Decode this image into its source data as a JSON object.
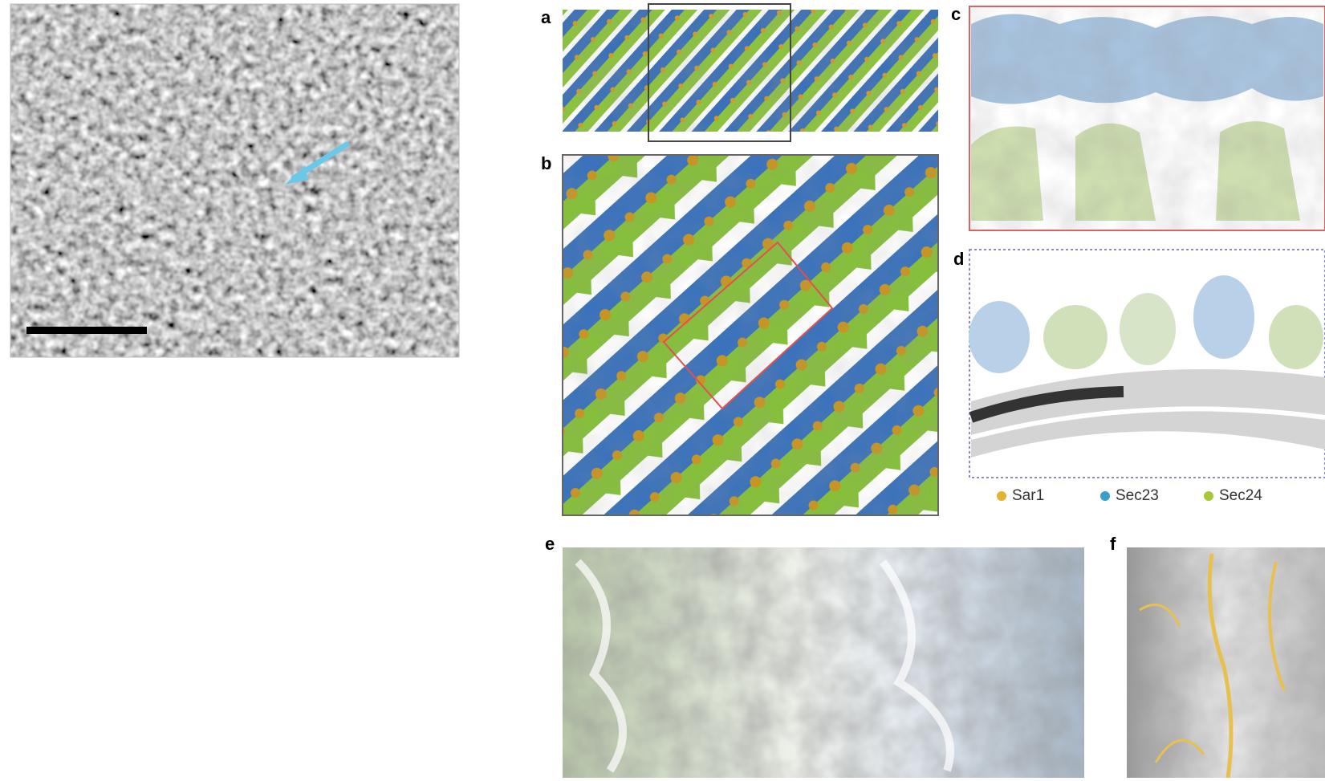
{
  "figure": {
    "panels": [
      {
        "label": "a"
      },
      {
        "label": "b"
      },
      {
        "label": "c"
      },
      {
        "label": "d"
      },
      {
        "label": "e"
      },
      {
        "label": "f"
      }
    ],
    "legend": [
      {
        "name": "Sar1",
        "color": "#e8b030"
      },
      {
        "name": "Sec23",
        "color": "#3aa0c8"
      },
      {
        "name": "Sec24",
        "color": "#a8c83a"
      }
    ]
  }
}
